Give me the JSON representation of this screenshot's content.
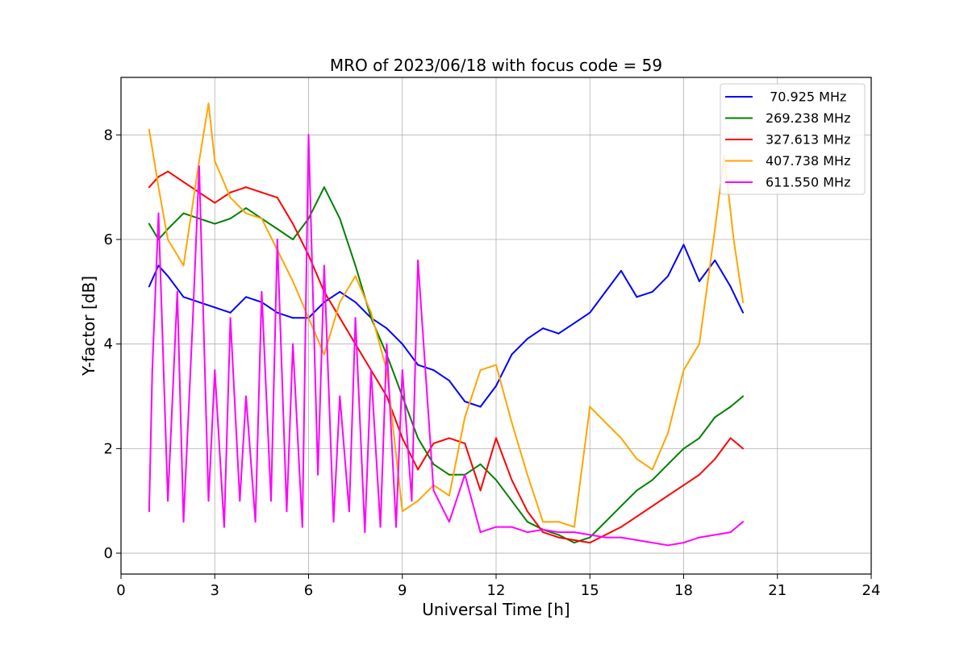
{
  "chart_data": {
    "type": "line",
    "title": "MRO of 2023/06/18 with focus code = 59",
    "xlabel": "Universal Time [h]",
    "ylabel": "Y-factor [dB]",
    "xlim": [
      0,
      24
    ],
    "ylim": [
      -0.4,
      9.1
    ],
    "xticks": [
      0,
      3,
      6,
      9,
      12,
      15,
      18,
      21,
      24
    ],
    "yticks": [
      0,
      2,
      4,
      6,
      8
    ],
    "grid": true,
    "legend_position": "top-right",
    "series": [
      {
        "name": " 70.925 MHz",
        "color": "#0000ff",
        "x": [
          0.9,
          1.2,
          1.5,
          2.0,
          2.5,
          3.0,
          3.5,
          4.0,
          4.5,
          5.0,
          5.5,
          6.0,
          6.5,
          7.0,
          7.5,
          8.0,
          8.5,
          9.0,
          9.5,
          10.0,
          10.5,
          11.0,
          11.5,
          12.0,
          12.5,
          13.0,
          13.5,
          14.0,
          14.5,
          15.0,
          15.5,
          16.0,
          16.5,
          17.0,
          17.5,
          18.0,
          18.5,
          19.0,
          19.5,
          19.9
        ],
        "values": [
          5.1,
          5.5,
          5.3,
          4.9,
          4.8,
          4.7,
          4.6,
          4.9,
          4.8,
          4.6,
          4.5,
          4.5,
          4.8,
          5.0,
          4.8,
          4.5,
          4.3,
          4.0,
          3.6,
          3.5,
          3.3,
          2.9,
          2.8,
          3.2,
          3.8,
          4.1,
          4.3,
          4.2,
          4.4,
          4.6,
          5.0,
          5.4,
          4.9,
          5.0,
          5.3,
          5.9,
          5.2,
          5.6,
          5.1,
          4.6
        ]
      },
      {
        "name": "269.238 MHz",
        "color": "#008000",
        "x": [
          0.9,
          1.2,
          1.5,
          2.0,
          2.5,
          3.0,
          3.5,
          4.0,
          4.5,
          5.0,
          5.5,
          6.0,
          6.5,
          7.0,
          7.5,
          8.0,
          8.5,
          9.0,
          9.5,
          10.0,
          10.5,
          11.0,
          11.5,
          12.0,
          12.5,
          13.0,
          13.5,
          14.0,
          14.5,
          15.0,
          15.5,
          16.0,
          16.5,
          17.0,
          17.5,
          18.0,
          18.5,
          19.0,
          19.5,
          19.9
        ],
        "values": [
          6.3,
          6.0,
          6.2,
          6.5,
          6.4,
          6.3,
          6.4,
          6.6,
          6.4,
          6.2,
          6.0,
          6.4,
          7.0,
          6.4,
          5.5,
          4.5,
          3.8,
          3.0,
          2.2,
          1.7,
          1.5,
          1.5,
          1.7,
          1.4,
          1.0,
          0.6,
          0.45,
          0.35,
          0.2,
          0.3,
          0.6,
          0.9,
          1.2,
          1.4,
          1.7,
          2.0,
          2.2,
          2.6,
          2.8,
          3.0
        ]
      },
      {
        "name": "327.613 MHz",
        "color": "#ff0000",
        "x": [
          0.9,
          1.2,
          1.5,
          2.0,
          2.5,
          3.0,
          3.5,
          4.0,
          4.5,
          5.0,
          5.5,
          6.0,
          6.5,
          7.0,
          7.5,
          8.0,
          8.5,
          9.0,
          9.5,
          10.0,
          10.5,
          11.0,
          11.5,
          12.0,
          12.5,
          13.0,
          13.5,
          14.0,
          14.5,
          15.0,
          15.5,
          16.0,
          16.5,
          17.0,
          17.5,
          18.0,
          18.5,
          19.0,
          19.5,
          19.9
        ],
        "values": [
          7.0,
          7.2,
          7.3,
          7.1,
          6.9,
          6.7,
          6.9,
          7.0,
          6.9,
          6.8,
          6.3,
          5.7,
          5.0,
          4.5,
          4.0,
          3.5,
          3.0,
          2.2,
          1.6,
          2.1,
          2.2,
          2.1,
          1.2,
          2.2,
          1.4,
          0.8,
          0.4,
          0.3,
          0.25,
          0.2,
          0.35,
          0.5,
          0.7,
          0.9,
          1.1,
          1.3,
          1.5,
          1.8,
          2.2,
          2.0
        ]
      },
      {
        "name": "407.738 MHz",
        "color": "#ffa500",
        "x": [
          0.9,
          1.2,
          1.5,
          2.0,
          2.5,
          2.8,
          3.0,
          3.5,
          4.0,
          4.5,
          5.0,
          5.5,
          6.0,
          6.5,
          7.0,
          7.5,
          8.0,
          8.5,
          9.0,
          9.5,
          10.0,
          10.5,
          11.0,
          11.5,
          12.0,
          12.5,
          13.0,
          13.5,
          14.0,
          14.5,
          15.0,
          15.5,
          16.0,
          16.5,
          17.0,
          17.5,
          18.0,
          18.5,
          19.0,
          19.3,
          19.6,
          19.9
        ],
        "values": [
          8.1,
          7.0,
          6.0,
          5.5,
          7.5,
          8.6,
          7.5,
          6.8,
          6.5,
          6.4,
          5.8,
          5.2,
          4.5,
          3.8,
          4.8,
          5.3,
          4.6,
          3.5,
          0.8,
          1.0,
          1.3,
          1.1,
          2.6,
          3.5,
          3.6,
          2.5,
          1.5,
          0.6,
          0.6,
          0.5,
          2.8,
          2.5,
          2.2,
          1.8,
          1.6,
          2.3,
          3.5,
          4.0,
          6.2,
          7.6,
          6.0,
          4.8
        ]
      },
      {
        "name": "611.550 MHz",
        "color": "#ff00ff",
        "x": [
          0.9,
          1.0,
          1.2,
          1.5,
          1.8,
          2.0,
          2.3,
          2.5,
          2.8,
          3.0,
          3.3,
          3.5,
          3.8,
          4.0,
          4.3,
          4.5,
          4.8,
          5.0,
          5.3,
          5.5,
          5.8,
          6.0,
          6.3,
          6.5,
          6.8,
          7.0,
          7.3,
          7.5,
          7.8,
          8.0,
          8.3,
          8.5,
          8.8,
          9.0,
          9.3,
          9.5,
          10.0,
          10.5,
          11.0,
          11.5,
          12.0,
          12.5,
          13.0,
          13.5,
          14.0,
          14.5,
          15.0,
          15.5,
          16.0,
          16.5,
          17.0,
          17.5,
          18.0,
          18.5,
          19.0,
          19.5,
          19.9
        ],
        "values": [
          0.8,
          3.5,
          6.5,
          1.0,
          5.0,
          0.6,
          4.5,
          7.4,
          1.0,
          3.5,
          0.5,
          4.5,
          1.0,
          3.0,
          0.6,
          5.0,
          1.0,
          6.0,
          0.8,
          4.0,
          0.5,
          8.0,
          1.5,
          5.5,
          0.6,
          3.0,
          0.8,
          4.5,
          0.4,
          3.5,
          0.5,
          4.0,
          0.5,
          3.5,
          1.0,
          5.6,
          1.2,
          0.6,
          1.5,
          0.4,
          0.5,
          0.5,
          0.4,
          0.45,
          0.4,
          0.4,
          0.35,
          0.3,
          0.3,
          0.25,
          0.2,
          0.15,
          0.2,
          0.3,
          0.35,
          0.4,
          0.6
        ]
      }
    ]
  }
}
